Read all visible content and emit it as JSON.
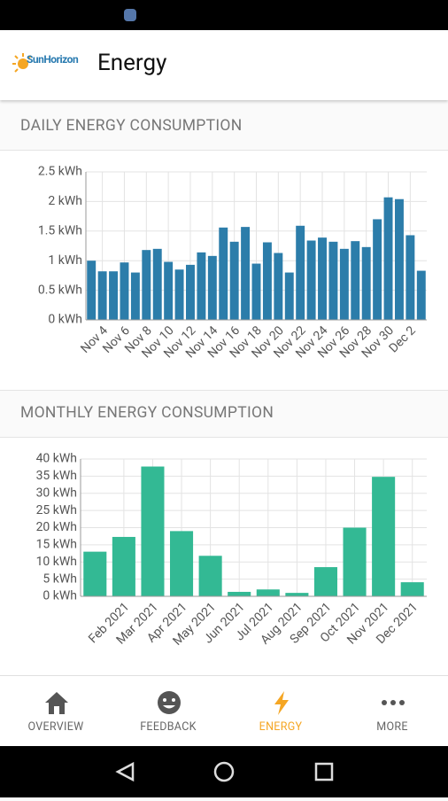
{
  "app": {
    "logo": "SunHorizon",
    "title": "Energy"
  },
  "sections": [
    {
      "title": "DAILY ENERGY CONSUMPTION",
      "chart_data": {
        "type": "bar",
        "color": "#2c7daa",
        "grid": true,
        "categories": [
          null,
          "Nov 4",
          null,
          "Nov 6",
          null,
          "Nov 8",
          null,
          "Nov 10",
          null,
          "Nov 12",
          null,
          "Nov 14",
          null,
          "Nov 16",
          null,
          "Nov 18",
          null,
          "Nov 20",
          null,
          "Nov 22",
          null,
          "Nov 24",
          null,
          "Nov 26",
          null,
          "Nov 28",
          null,
          "Nov 30",
          null,
          "Dec 2",
          null
        ],
        "values": [
          1.0,
          0.82,
          0.82,
          0.97,
          0.8,
          1.18,
          1.2,
          0.98,
          0.85,
          0.93,
          1.14,
          1.08,
          1.56,
          1.32,
          1.57,
          0.95,
          1.31,
          1.13,
          0.8,
          1.59,
          1.34,
          1.39,
          1.32,
          1.2,
          1.33,
          1.23,
          1.7,
          2.07,
          2.04,
          1.43,
          0.83
        ],
        "ylim": [
          0,
          2.5
        ],
        "yticks": [
          {
            "value": 0,
            "label": "0 kWh"
          },
          {
            "value": 0.5,
            "label": "0.5 kWh"
          },
          {
            "value": 1,
            "label": "1 kWh"
          },
          {
            "value": 1.5,
            "label": "1.5 kWh"
          },
          {
            "value": 2,
            "label": "2 kWh"
          },
          {
            "value": 2.5,
            "label": "2.5 kWh"
          }
        ]
      }
    },
    {
      "title": "MONTHLY ENERGY CONSUMPTION",
      "chart_data": {
        "type": "bar",
        "color": "#33b994",
        "grid": true,
        "categories": [
          null,
          "Feb 2021",
          "Mar 2021",
          "Apr 2021",
          "May 2021",
          "Jun 2021",
          "Jul 2021",
          "Aug 2021",
          "Sep 2021",
          "Oct 2021",
          "Nov 2021",
          "Dec 2021"
        ],
        "values": [
          13,
          17.3,
          37.8,
          19,
          11.8,
          1.3,
          2,
          1,
          8.5,
          20,
          34.8,
          4.1
        ],
        "ylim": [
          0,
          40
        ],
        "yticks": [
          {
            "value": 0,
            "label": "0 kWh"
          },
          {
            "value": 5,
            "label": "5 kWh"
          },
          {
            "value": 10,
            "label": "10 kWh"
          },
          {
            "value": 15,
            "label": "15 kWh"
          },
          {
            "value": 20,
            "label": "20 kWh"
          },
          {
            "value": 25,
            "label": "25 kWh"
          },
          {
            "value": 30,
            "label": "30 kWh"
          },
          {
            "value": 35,
            "label": "35 kWh"
          },
          {
            "value": 40,
            "label": "40 kWh"
          }
        ]
      }
    }
  ],
  "nav": [
    {
      "label": "OVERVIEW"
    },
    {
      "label": "FEEDBACK"
    },
    {
      "label": "ENERGY"
    },
    {
      "label": "MORE"
    }
  ]
}
